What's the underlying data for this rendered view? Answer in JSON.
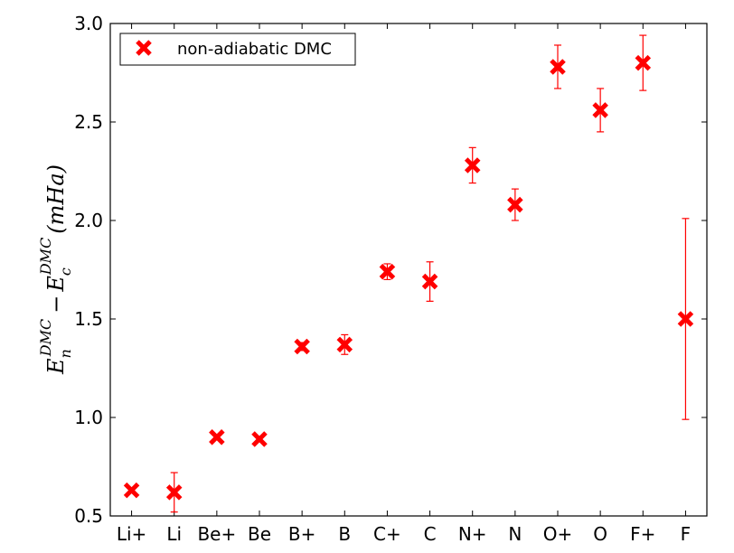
{
  "chart_data": {
    "type": "scatter",
    "categories": [
      "Li+",
      "Li",
      "Be+",
      "Be",
      "B+",
      "B",
      "C+",
      "C",
      "N+",
      "N",
      "O+",
      "O",
      "F+",
      "F"
    ],
    "series": [
      {
        "name": "non-adiabatic DMC",
        "color": "#ff0000",
        "marker": "x",
        "values": [
          0.63,
          0.62,
          0.9,
          0.89,
          1.36,
          1.37,
          1.74,
          1.69,
          2.28,
          2.08,
          2.78,
          2.56,
          2.8,
          1.5
        ],
        "errors": [
          0.01,
          0.1,
          0.01,
          0.01,
          0.02,
          0.05,
          0.04,
          0.1,
          0.09,
          0.08,
          0.11,
          0.11,
          0.14,
          0.51
        ]
      }
    ],
    "ylim": [
      0.5,
      3.0
    ],
    "yticks": [
      "0.5",
      "1.0",
      "1.5",
      "2.0",
      "2.5",
      "3.0"
    ],
    "ylabel": {
      "E": "E",
      "sub_n": "n",
      "sup1": "DMC",
      "minus": "−",
      "sub_c": "c",
      "sup2": "DMC",
      "unit": "(mHa)"
    },
    "xlabel": "",
    "title": "",
    "legend_position": "top-left",
    "grid": false
  }
}
